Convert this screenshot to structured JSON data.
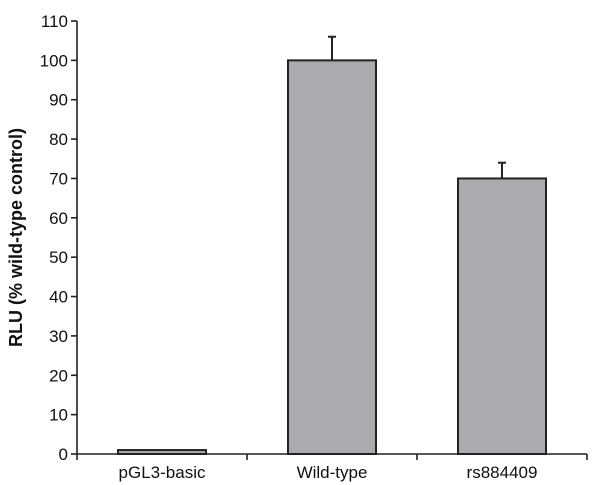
{
  "chart_data": {
    "type": "bar",
    "title": "",
    "xlabel": "",
    "ylabel": "RLU (% wild-type control)",
    "categories": [
      "pGL3-basic",
      "Wild-type",
      "rs884409"
    ],
    "values": [
      1,
      100,
      70
    ],
    "errors": [
      0,
      6,
      4
    ],
    "ylim": [
      0,
      110
    ],
    "yticks": [
      0,
      10,
      20,
      30,
      40,
      50,
      60,
      70,
      80,
      90,
      100,
      110
    ],
    "grid": false,
    "bar_color": "#a9abae",
    "edge_color": "#222222"
  }
}
